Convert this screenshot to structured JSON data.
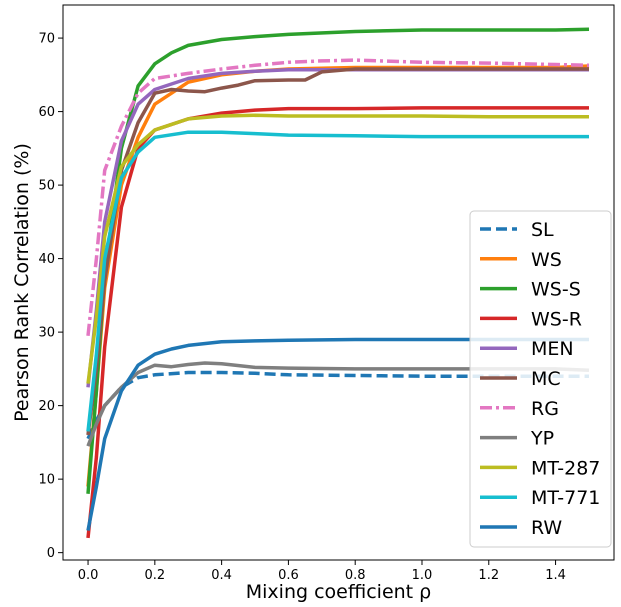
{
  "chart_data": {
    "type": "line",
    "title": "",
    "xlabel": "Mixing coefficient ρ",
    "ylabel": "Pearson Rank Correlation (%)",
    "xlim": [
      -0.075,
      1.575
    ],
    "ylim": [
      -1,
      74.5
    ],
    "xticks": [
      0.0,
      0.2,
      0.4,
      0.6,
      0.8,
      1.0,
      1.2,
      1.4
    ],
    "xtick_labels": [
      "0.0",
      "0.2",
      "0.4",
      "0.6",
      "0.8",
      "1.0",
      "1.2",
      "1.4"
    ],
    "yticks": [
      0,
      10,
      20,
      30,
      40,
      50,
      60,
      70
    ],
    "ytick_labels": [
      "0",
      "10",
      "20",
      "30",
      "40",
      "50",
      "60",
      "70"
    ],
    "grid": false,
    "legend_position": "lower-right",
    "series": [
      {
        "name": "SL",
        "color": "#1f77b4",
        "dash": "dashed",
        "x": [
          0,
          0.025,
          0.05,
          0.1,
          0.15,
          0.2,
          0.3,
          0.4,
          0.5,
          0.6,
          0.8,
          1.0,
          1.2,
          1.4,
          1.5
        ],
        "y": [
          15.5,
          18.0,
          20.0,
          22.5,
          23.8,
          24.2,
          24.5,
          24.5,
          24.4,
          24.2,
          24.1,
          24.0,
          24.0,
          24.0,
          24.0
        ]
      },
      {
        "name": "WS",
        "color": "#ff7f0e",
        "dash": "solid",
        "x": [
          0,
          0.025,
          0.05,
          0.1,
          0.15,
          0.2,
          0.3,
          0.4,
          0.5,
          0.6,
          0.8,
          1.0,
          1.2,
          1.4,
          1.5
        ],
        "y": [
          9.0,
          22.0,
          36.0,
          50.0,
          56.5,
          61.0,
          64.0,
          65.0,
          65.5,
          65.8,
          66.0,
          66.0,
          66.0,
          66.0,
          66.2
        ]
      },
      {
        "name": "WS-S",
        "color": "#2ca02c",
        "dash": "solid",
        "x": [
          0,
          0.025,
          0.05,
          0.1,
          0.15,
          0.2,
          0.25,
          0.3,
          0.4,
          0.5,
          0.6,
          0.8,
          1.0,
          1.2,
          1.4,
          1.5
        ],
        "y": [
          8.0,
          22.0,
          38.0,
          55.0,
          63.5,
          66.5,
          68.0,
          69.0,
          69.8,
          70.2,
          70.5,
          70.9,
          71.1,
          71.1,
          71.1,
          71.2
        ]
      },
      {
        "name": "WS-R",
        "color": "#d62728",
        "dash": "solid",
        "x": [
          0,
          0.025,
          0.05,
          0.1,
          0.15,
          0.2,
          0.3,
          0.4,
          0.5,
          0.6,
          0.8,
          1.0,
          1.2,
          1.4,
          1.5
        ],
        "y": [
          2.0,
          13.0,
          28.0,
          47.0,
          55.0,
          57.5,
          59.0,
          59.8,
          60.2,
          60.4,
          60.4,
          60.5,
          60.5,
          60.5,
          60.5
        ]
      },
      {
        "name": "MEN",
        "color": "#9467bd",
        "dash": "solid",
        "x": [
          0,
          0.025,
          0.05,
          0.1,
          0.15,
          0.2,
          0.3,
          0.4,
          0.5,
          0.6,
          0.8,
          1.0,
          1.2,
          1.4,
          1.5
        ],
        "y": [
          22.5,
          33.0,
          45.0,
          56.0,
          61.0,
          63.0,
          64.5,
          65.2,
          65.5,
          65.7,
          65.7,
          65.7,
          65.7,
          65.7,
          65.7
        ]
      },
      {
        "name": "MC",
        "color": "#8c564b",
        "dash": "solid",
        "x": [
          0,
          0.025,
          0.05,
          0.1,
          0.15,
          0.2,
          0.25,
          0.3,
          0.35,
          0.4,
          0.45,
          0.5,
          0.6,
          0.65,
          0.7,
          0.8,
          1.0,
          1.2,
          1.4,
          1.5
        ],
        "y": [
          16.0,
          25.0,
          37.0,
          52.0,
          58.5,
          62.5,
          63.0,
          62.8,
          62.7,
          63.2,
          63.6,
          64.2,
          64.3,
          64.3,
          65.4,
          65.8,
          65.8,
          65.8,
          65.8,
          65.8
        ]
      },
      {
        "name": "RG",
        "color": "#e377c2",
        "dash": "dashdot",
        "x": [
          0,
          0.025,
          0.05,
          0.1,
          0.15,
          0.2,
          0.3,
          0.4,
          0.5,
          0.6,
          0.7,
          0.8,
          1.0,
          1.2,
          1.4,
          1.5
        ],
        "y": [
          29.5,
          40.0,
          52.0,
          58.0,
          62.5,
          64.5,
          65.2,
          65.8,
          66.3,
          66.7,
          66.9,
          67.0,
          66.7,
          66.6,
          66.4,
          66.3
        ]
      },
      {
        "name": "YP",
        "color": "#7f7f7f",
        "dash": "solid",
        "x": [
          0,
          0.025,
          0.05,
          0.1,
          0.15,
          0.2,
          0.25,
          0.3,
          0.35,
          0.4,
          0.5,
          0.6,
          0.8,
          1.0,
          1.2,
          1.4,
          1.5
        ],
        "y": [
          14.5,
          17.5,
          20.0,
          22.5,
          24.5,
          25.5,
          25.3,
          25.6,
          25.8,
          25.7,
          25.2,
          25.1,
          25.0,
          25.0,
          25.0,
          25.0,
          24.8
        ]
      },
      {
        "name": "MT-287",
        "color": "#bcbd22",
        "dash": "solid",
        "x": [
          0,
          0.025,
          0.05,
          0.1,
          0.15,
          0.2,
          0.3,
          0.4,
          0.5,
          0.6,
          0.8,
          1.0,
          1.2,
          1.4,
          1.5
        ],
        "y": [
          23.0,
          32.0,
          43.0,
          52.5,
          55.5,
          57.5,
          59.0,
          59.4,
          59.5,
          59.4,
          59.4,
          59.4,
          59.3,
          59.3,
          59.3
        ]
      },
      {
        "name": "MT-771",
        "color": "#17becf",
        "dash": "solid",
        "x": [
          0,
          0.025,
          0.05,
          0.1,
          0.15,
          0.2,
          0.3,
          0.4,
          0.5,
          0.6,
          0.8,
          1.0,
          1.2,
          1.4,
          1.5
        ],
        "y": [
          16.5,
          27.0,
          40.0,
          51.0,
          54.5,
          56.5,
          57.2,
          57.2,
          57.0,
          56.8,
          56.7,
          56.6,
          56.6,
          56.6,
          56.6
        ]
      },
      {
        "name": "RW",
        "color": "#1f77b4",
        "dash": "solid",
        "x": [
          0,
          0.025,
          0.05,
          0.1,
          0.15,
          0.2,
          0.25,
          0.3,
          0.4,
          0.5,
          0.6,
          0.8,
          1.0,
          1.2,
          1.4,
          1.5
        ],
        "y": [
          3.0,
          9.0,
          15.5,
          22.0,
          25.5,
          27.0,
          27.7,
          28.2,
          28.7,
          28.8,
          28.9,
          29.0,
          29.0,
          29.0,
          29.0,
          29.0
        ]
      }
    ]
  }
}
